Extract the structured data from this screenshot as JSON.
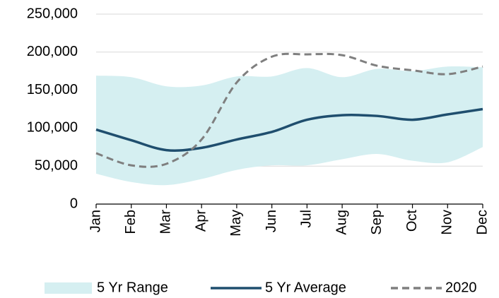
{
  "chart_data": {
    "type": "line",
    "categories": [
      "Jan",
      "Feb",
      "Mar",
      "Apr",
      "May",
      "Jun",
      "Jul",
      "Aug",
      "Sep",
      "Oct",
      "Nov",
      "Dec"
    ],
    "ylim": [
      0,
      250000
    ],
    "yticks": [
      {
        "value": 0,
        "label": "0"
      },
      {
        "value": 50000,
        "label": "50,000"
      },
      {
        "value": 100000,
        "label": "100,000"
      },
      {
        "value": 150000,
        "label": "150,000"
      },
      {
        "value": 200000,
        "label": "200,000"
      },
      {
        "value": 250000,
        "label": "250,000"
      }
    ],
    "grid": true,
    "legend": "bottom",
    "series": [
      {
        "name": "5 Yr Range",
        "color": "#d5eff1",
        "low": [
          40000,
          29000,
          25000,
          33000,
          45000,
          51000,
          51000,
          59000,
          66000,
          57000,
          55000,
          75000
        ],
        "high": [
          169000,
          167000,
          155000,
          156000,
          168000,
          168000,
          179000,
          167000,
          178000,
          175000,
          181000,
          180000
        ]
      },
      {
        "name": "5 Yr Average",
        "color": "#1f4e6e",
        "values": [
          98000,
          84000,
          71000,
          74000,
          85000,
          95000,
          111000,
          117000,
          116000,
          111000,
          118000,
          125000
        ]
      },
      {
        "name": "2020",
        "color": "#7f7f7f",
        "dashed": true,
        "values": [
          67000,
          51000,
          53000,
          85000,
          160000,
          194000,
          197000,
          196000,
          182000,
          176000,
          171000,
          181000
        ]
      }
    ]
  }
}
